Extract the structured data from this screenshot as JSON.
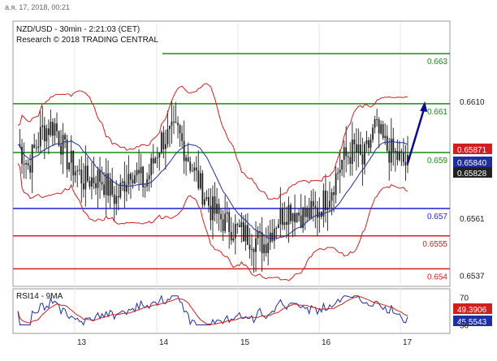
{
  "header": {
    "timestamp": "а.я. 17, 2018, 00:21"
  },
  "chart_data": [
    {
      "type": "candlestick",
      "title": "NZD/USD - 30min - 2:21:03 (CET)",
      "subtitle": "Research © 2018 TRADING CENTRAL",
      "x_ticks": [
        "13",
        "14",
        "15",
        "16",
        "17"
      ],
      "y_ticks": [
        "0.6610",
        "0.6561",
        "0.6537"
      ],
      "ylim": [
        0.6533,
        0.6643
      ],
      "levels": [
        {
          "label": "0.663",
          "value": 0.663,
          "color": "#1a8a1a"
        },
        {
          "label": "0.661",
          "value": 0.6609,
          "color": "#1a8a1a"
        },
        {
          "label": "0.659",
          "value": 0.65885,
          "color": "#1a8a1a"
        },
        {
          "label": "0.657",
          "value": 0.6565,
          "color": "#1f1fd0"
        },
        {
          "label": "0.6555",
          "value": 0.65535,
          "color": "#d01f1f"
        },
        {
          "label": "0.654",
          "value": 0.65397,
          "color": "#d01f1f"
        }
      ],
      "price_tags": [
        {
          "label": "0.65871",
          "value": 0.65871,
          "color": "#d01f1f"
        },
        {
          "label": "0.65840",
          "value": 0.6584,
          "color": "#1f2f9f"
        },
        {
          "label": "0.65828",
          "value": 0.65828,
          "color": "#222222"
        }
      ],
      "path": [
        [
          0,
          0.6592
        ],
        [
          5,
          0.6583
        ],
        [
          12,
          0.6598
        ],
        [
          18,
          0.66
        ],
        [
          24,
          0.6586
        ],
        [
          32,
          0.6577
        ],
        [
          40,
          0.6578
        ],
        [
          48,
          0.6569
        ],
        [
          55,
          0.6582
        ],
        [
          62,
          0.6575
        ],
        [
          70,
          0.6594
        ],
        [
          78,
          0.6597
        ],
        [
          86,
          0.658
        ],
        [
          94,
          0.6565
        ],
        [
          100,
          0.656
        ],
        [
          106,
          0.6556
        ],
        [
          114,
          0.6553
        ],
        [
          120,
          0.655
        ],
        [
          126,
          0.656
        ],
        [
          132,
          0.6565
        ],
        [
          140,
          0.6562
        ],
        [
          146,
          0.6564
        ],
        [
          152,
          0.6572
        ],
        [
          158,
          0.6585
        ],
        [
          164,
          0.659
        ],
        [
          168,
          0.6584
        ],
        [
          174,
          0.6599
        ],
        [
          180,
          0.659
        ],
        [
          186,
          0.6586
        ],
        [
          190,
          0.6583
        ]
      ],
      "projection": [
        [
          190,
          0.6584
        ],
        [
          198,
          0.6609
        ]
      ],
      "series": [
        {
          "name": "",
          "color": "#1f2f9f"
        },
        {
          "name": "",
          "color": "#d01f1f"
        }
      ]
    },
    {
      "type": "line",
      "title": "RSI14 - 9MA",
      "y_ticks": [
        "70",
        "30"
      ],
      "ylim": [
        20,
        80
      ],
      "price_tags": [
        {
          "label": "49.3906",
          "value": 49.3906,
          "color": "#d01f1f"
        },
        {
          "label": "45.5543",
          "value": 45.5543,
          "color": "#1f2f9f"
        }
      ],
      "series": [
        {
          "name": "RSI14",
          "color": "#1f2f9f"
        },
        {
          "name": "9MA",
          "color": "#d01f1f"
        }
      ]
    }
  ]
}
